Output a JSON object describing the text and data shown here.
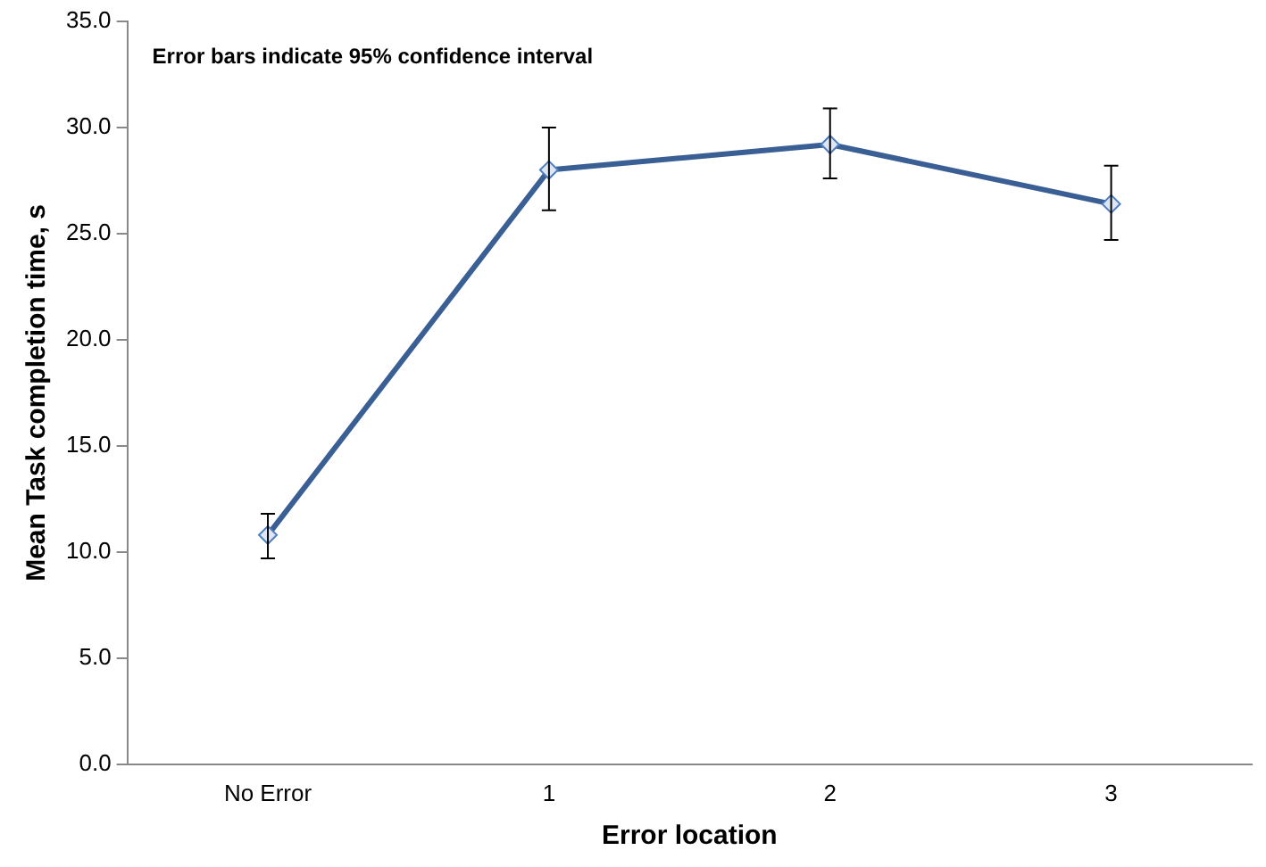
{
  "chart_data": {
    "type": "line",
    "xlabel": "Error location",
    "ylabel": "Mean Task completion time, s",
    "annotations": [
      "Error bars indicate 95% confidence interval"
    ],
    "categories": [
      "No Error",
      "1",
      "2",
      "3"
    ],
    "series": [
      {
        "color": "#3a5f94",
        "values": [
          10.8,
          28.0,
          29.2,
          26.4
        ],
        "errors": [
          [
            9.7,
            11.8
          ],
          [
            26.1,
            30.0
          ],
          [
            27.6,
            30.9
          ],
          [
            24.7,
            28.2
          ]
        ]
      }
    ],
    "ylim": [
      0,
      35
    ],
    "yticks": [
      {
        "value": 0,
        "label": "0.0"
      },
      {
        "value": 5,
        "label": "5.0"
      },
      {
        "value": 10,
        "label": "10.0"
      },
      {
        "value": 15,
        "label": "15.0"
      },
      {
        "value": 20,
        "label": "20.0"
      },
      {
        "value": 25,
        "label": "25.0"
      },
      {
        "value": 30,
        "label": "30.0"
      },
      {
        "value": 35,
        "label": "35.0"
      }
    ],
    "grid": false,
    "legend": false,
    "marker": "diamond",
    "line_style": "solid"
  }
}
